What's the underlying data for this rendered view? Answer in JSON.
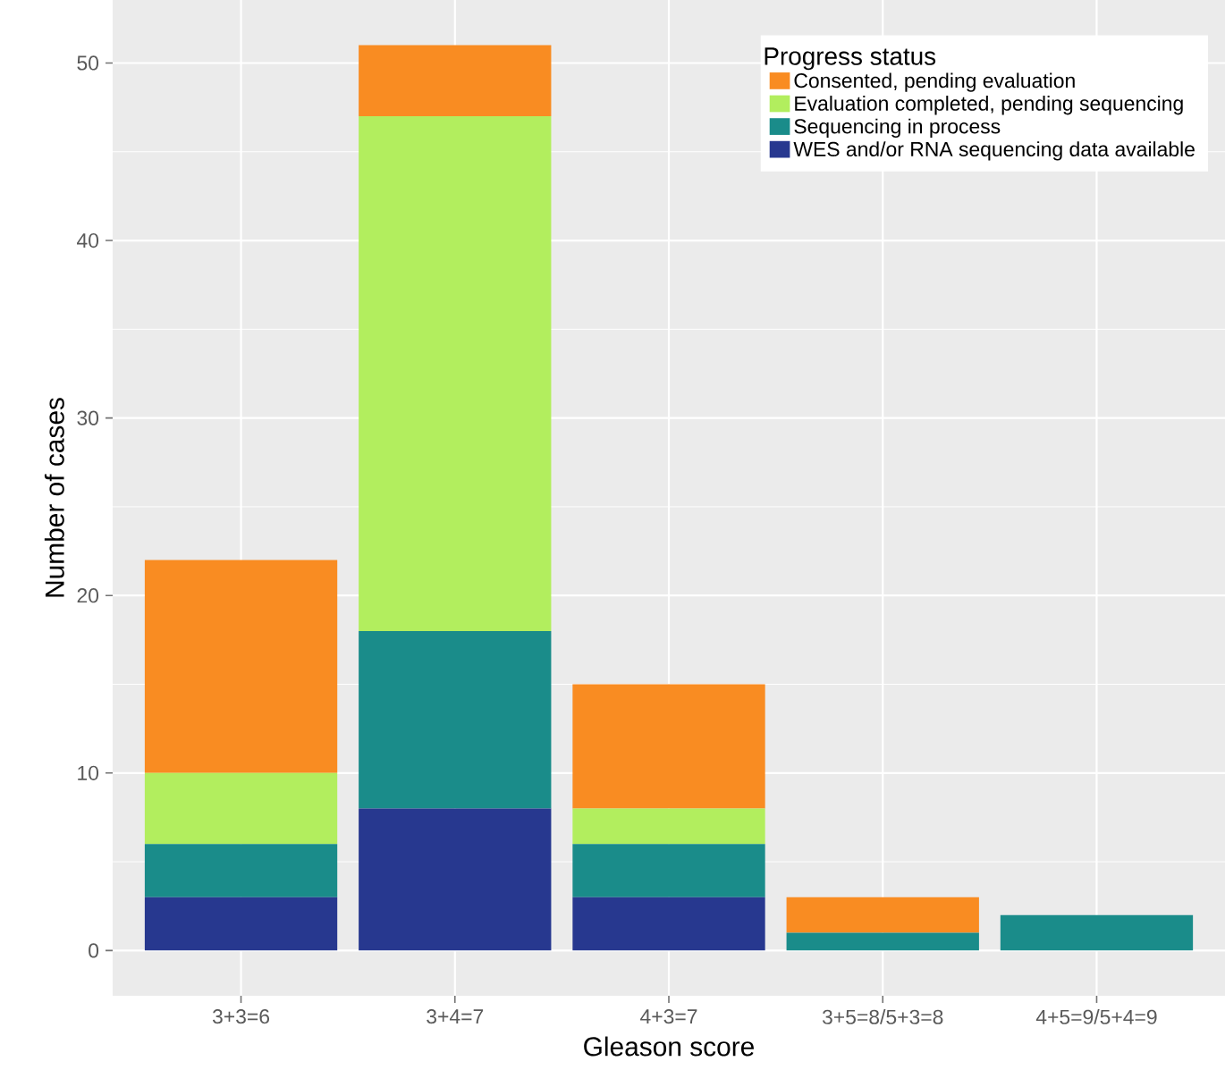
{
  "chart_data": {
    "type": "bar",
    "stacked": true,
    "xlabel": "Gleason score",
    "ylabel": "Number of cases",
    "legend_title": "Progress status",
    "categories": [
      "3+3=6",
      "3+4=7",
      "4+3=7",
      "3+5=8/5+3=8",
      "4+5=9/5+4=9"
    ],
    "series": [
      {
        "name": "WES and/or RNA sequencing data available",
        "color": "#27388f",
        "values": [
          3,
          8,
          3,
          0,
          0
        ]
      },
      {
        "name": "Sequencing in process",
        "color": "#1a8c8a",
        "values": [
          3,
          10,
          3,
          1,
          2
        ]
      },
      {
        "name": "Evaluation completed, pending sequencing",
        "color": "#b2ee5e",
        "values": [
          4,
          29,
          2,
          0,
          0
        ]
      },
      {
        "name": "Consented, pending evaluation",
        "color": "#f98c22",
        "values": [
          12,
          4,
          7,
          2,
          0
        ]
      }
    ],
    "ylim": [
      -2.55,
      53.55
    ],
    "yticks": [
      0,
      10,
      20,
      30,
      40,
      50
    ],
    "grid": true,
    "legend": "top right"
  }
}
